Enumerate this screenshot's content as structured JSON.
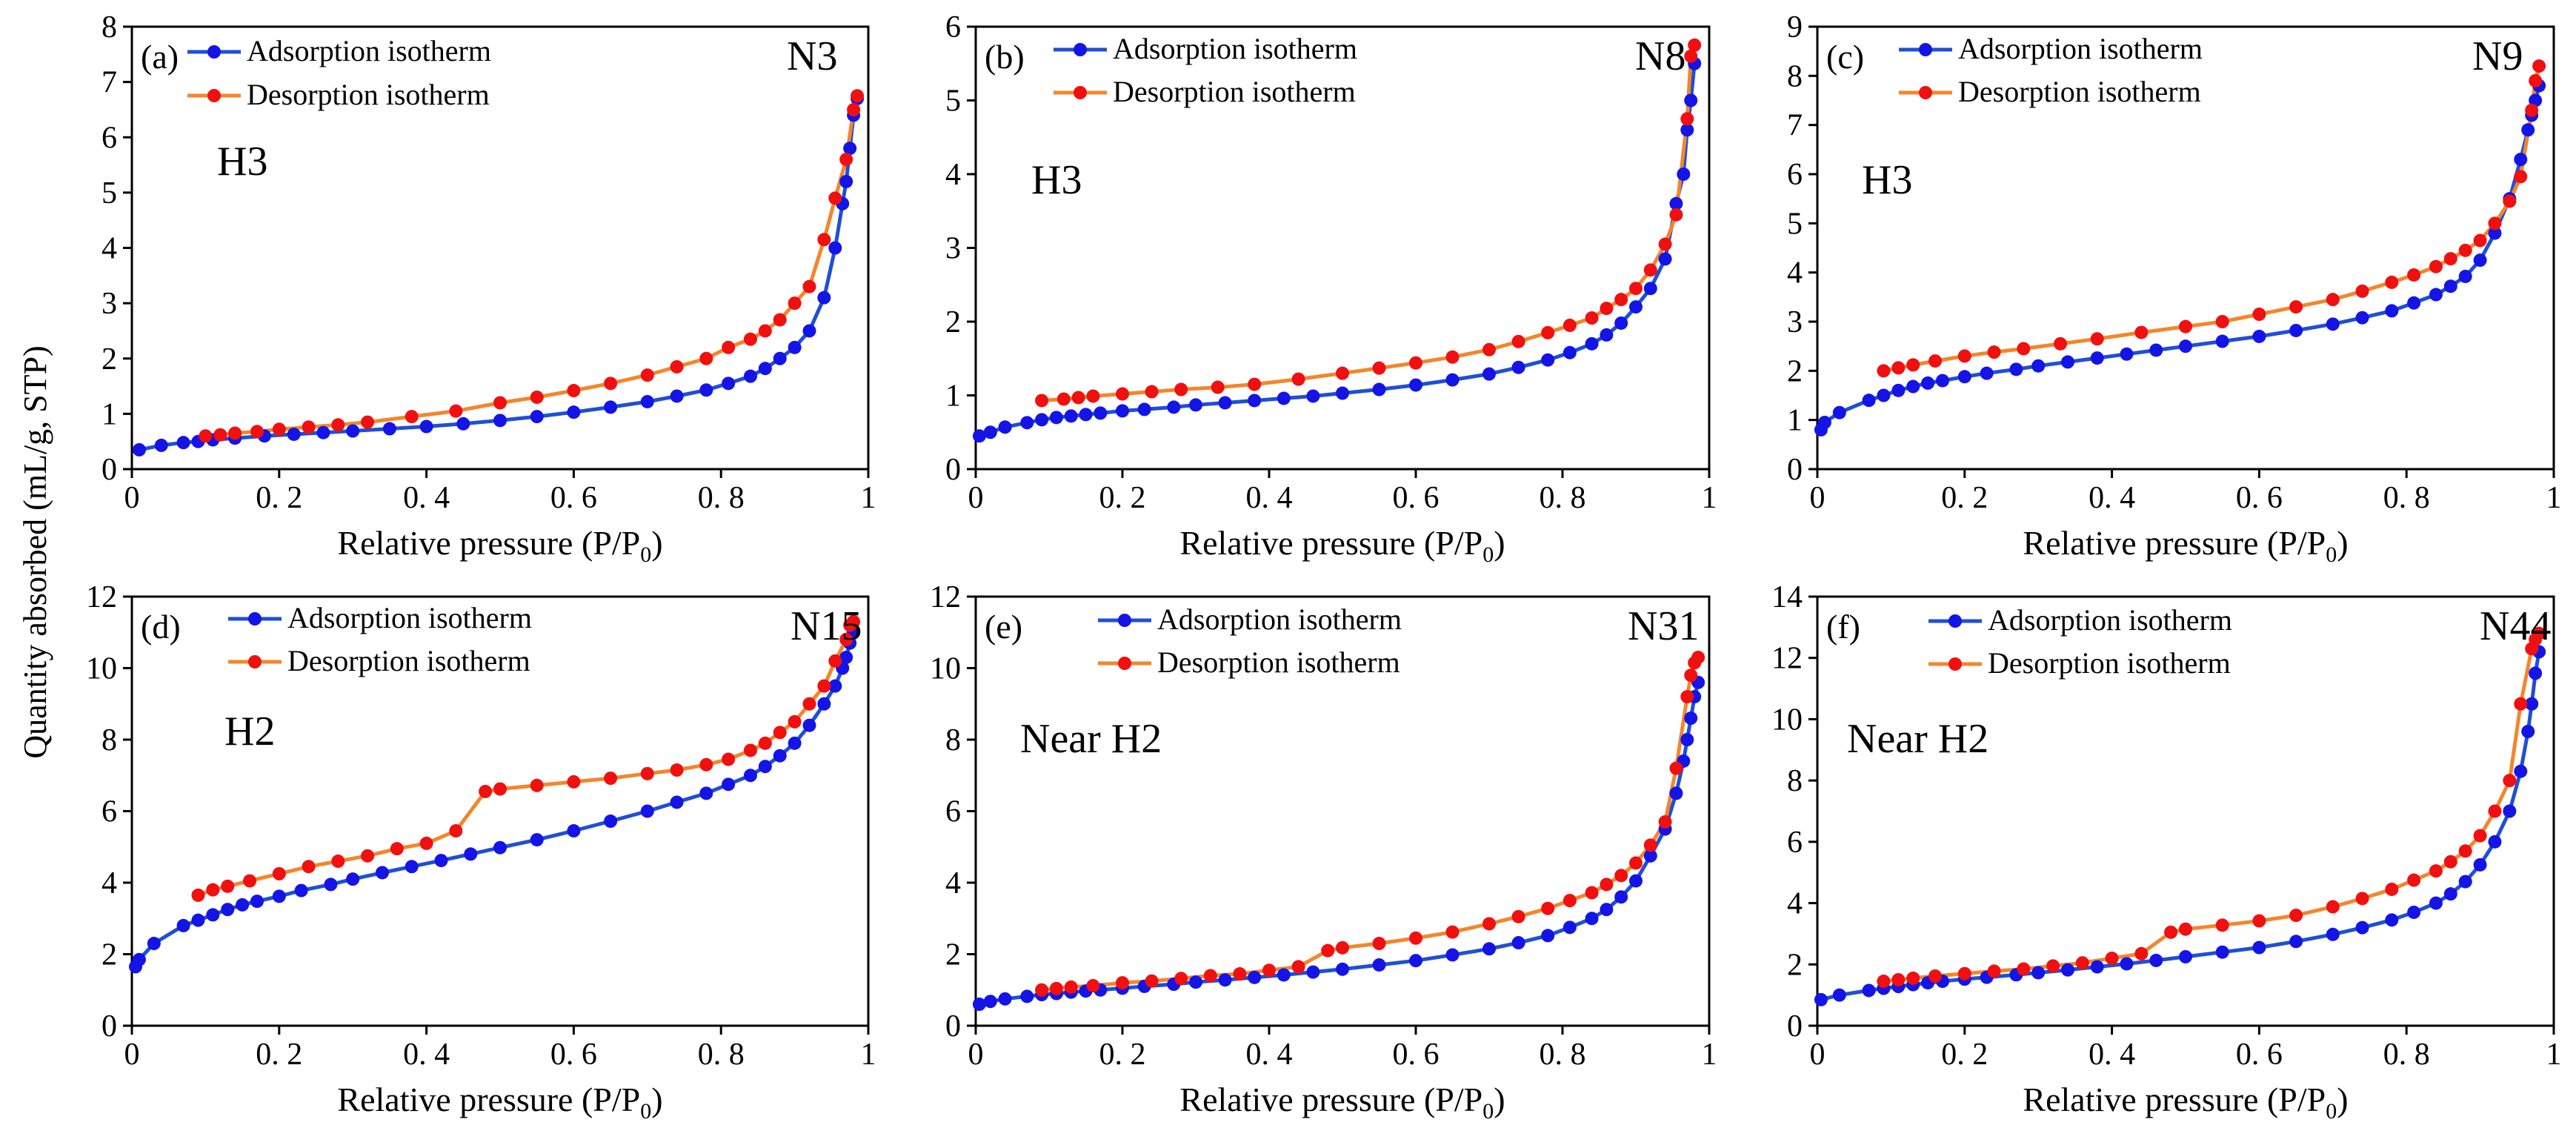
{
  "figure": {
    "ylabel": "Quantity absorbed (mL/g, STP)"
  },
  "colors": {
    "adsorption": "#1f4fd6",
    "desorption": "#f3862b",
    "adsorption_marker": "#1414e6",
    "desorption_marker": "#f01010"
  },
  "chart_data": [
    {
      "type": "line",
      "panel": "(a)",
      "sample": "N3",
      "hysteresis": "H3",
      "xlabel": "Relative pressure",
      "xlabel_expr": "(P/P",
      "xlabel_sub": "0",
      "xlim": [
        0,
        1
      ],
      "ylim": [
        0,
        8
      ],
      "xticks": [
        "0",
        "0. 2",
        "0. 4",
        "0. 6",
        "0. 8",
        "1"
      ],
      "yticks": [
        "0",
        "1",
        "2",
        "3",
        "4",
        "5",
        "6",
        "7",
        "8"
      ],
      "legend": [
        "Adsorption isotherm",
        "Desorption isotherm"
      ],
      "series": [
        {
          "name": "Adsorption isotherm",
          "x": [
            0.01,
            0.04,
            0.07,
            0.09,
            0.11,
            0.14,
            0.18,
            0.22,
            0.26,
            0.3,
            0.35,
            0.4,
            0.45,
            0.5,
            0.55,
            0.6,
            0.65,
            0.7,
            0.74,
            0.78,
            0.81,
            0.84,
            0.86,
            0.88,
            0.9,
            0.92,
            0.94,
            0.955,
            0.965,
            0.97,
            0.975,
            0.98,
            0.985
          ],
          "y": [
            0.35,
            0.43,
            0.48,
            0.5,
            0.53,
            0.56,
            0.6,
            0.63,
            0.66,
            0.69,
            0.73,
            0.77,
            0.82,
            0.88,
            0.95,
            1.03,
            1.12,
            1.22,
            1.32,
            1.43,
            1.55,
            1.68,
            1.82,
            2.0,
            2.2,
            2.5,
            3.1,
            4.0,
            4.8,
            5.2,
            5.8,
            6.4,
            6.7
          ]
        },
        {
          "name": "Desorption isotherm",
          "x": [
            0.985,
            0.98,
            0.97,
            0.955,
            0.94,
            0.92,
            0.9,
            0.88,
            0.86,
            0.84,
            0.81,
            0.78,
            0.74,
            0.7,
            0.65,
            0.6,
            0.55,
            0.5,
            0.44,
            0.38,
            0.32,
            0.28,
            0.24,
            0.2,
            0.17,
            0.14,
            0.12,
            0.1
          ],
          "y": [
            6.75,
            6.5,
            5.6,
            4.9,
            4.15,
            3.3,
            3.0,
            2.7,
            2.5,
            2.35,
            2.2,
            2.0,
            1.85,
            1.7,
            1.55,
            1.42,
            1.3,
            1.2,
            1.05,
            0.95,
            0.85,
            0.8,
            0.76,
            0.72,
            0.68,
            0.65,
            0.62,
            0.6
          ]
        }
      ]
    },
    {
      "type": "line",
      "panel": "(b)",
      "sample": "N8",
      "hysteresis": "H3",
      "xlabel": "Relative pressure",
      "xlabel_expr": "(P/P",
      "xlabel_sub": "0",
      "xlim": [
        0,
        1
      ],
      "ylim": [
        0,
        6
      ],
      "xticks": [
        "0",
        "0. 2",
        "0. 4",
        "0. 6",
        "0. 8",
        "1"
      ],
      "yticks": [
        "0",
        "1",
        "2",
        "3",
        "4",
        "5",
        "6"
      ],
      "legend": [
        "Adsorption isotherm",
        "Desorption isotherm"
      ],
      "series": [
        {
          "name": "Adsorption isotherm",
          "x": [
            0.005,
            0.02,
            0.04,
            0.07,
            0.09,
            0.11,
            0.13,
            0.15,
            0.17,
            0.2,
            0.23,
            0.27,
            0.3,
            0.34,
            0.38,
            0.42,
            0.46,
            0.5,
            0.55,
            0.6,
            0.65,
            0.7,
            0.74,
            0.78,
            0.81,
            0.84,
            0.86,
            0.88,
            0.9,
            0.92,
            0.94,
            0.955,
            0.965,
            0.97,
            0.975,
            0.98
          ],
          "y": [
            0.45,
            0.5,
            0.57,
            0.63,
            0.67,
            0.7,
            0.72,
            0.74,
            0.76,
            0.79,
            0.81,
            0.84,
            0.87,
            0.9,
            0.93,
            0.96,
            0.99,
            1.03,
            1.08,
            1.14,
            1.21,
            1.29,
            1.38,
            1.48,
            1.58,
            1.7,
            1.82,
            1.98,
            2.2,
            2.45,
            2.85,
            3.6,
            4.0,
            4.6,
            5.0,
            5.5
          ]
        },
        {
          "name": "Desorption isotherm",
          "x": [
            0.98,
            0.975,
            0.97,
            0.955,
            0.94,
            0.92,
            0.9,
            0.88,
            0.86,
            0.84,
            0.81,
            0.78,
            0.74,
            0.7,
            0.65,
            0.6,
            0.55,
            0.5,
            0.44,
            0.38,
            0.33,
            0.28,
            0.24,
            0.2,
            0.16,
            0.14,
            0.12,
            0.09
          ],
          "y": [
            5.75,
            5.6,
            4.75,
            3.45,
            3.05,
            2.7,
            2.45,
            2.3,
            2.18,
            2.05,
            1.95,
            1.85,
            1.73,
            1.62,
            1.52,
            1.44,
            1.37,
            1.3,
            1.22,
            1.15,
            1.11,
            1.08,
            1.05,
            1.02,
            0.99,
            0.97,
            0.95,
            0.93
          ]
        }
      ]
    },
    {
      "type": "line",
      "panel": "(c)",
      "sample": "N9",
      "hysteresis": "H3",
      "xlabel": "Relative pressure",
      "xlabel_expr": "(P/P",
      "xlabel_sub": "0",
      "xlim": [
        0,
        1
      ],
      "ylim": [
        0,
        9
      ],
      "xticks": [
        "0",
        "0. 2",
        "0. 4",
        "0. 6",
        "0. 8",
        "1"
      ],
      "yticks": [
        "0",
        "1",
        "2",
        "3",
        "4",
        "5",
        "6",
        "7",
        "8",
        "9"
      ],
      "legend": [
        "Adsorption isotherm",
        "Desorption isotherm"
      ],
      "series": [
        {
          "name": "Adsorption isotherm",
          "x": [
            0.005,
            0.01,
            0.03,
            0.07,
            0.09,
            0.11,
            0.13,
            0.15,
            0.17,
            0.2,
            0.23,
            0.27,
            0.3,
            0.34,
            0.38,
            0.42,
            0.46,
            0.5,
            0.55,
            0.6,
            0.65,
            0.7,
            0.74,
            0.78,
            0.81,
            0.84,
            0.86,
            0.88,
            0.9,
            0.92,
            0.94,
            0.955,
            0.965,
            0.97,
            0.975,
            0.98
          ],
          "y": [
            0.8,
            0.95,
            1.15,
            1.4,
            1.5,
            1.6,
            1.68,
            1.75,
            1.8,
            1.88,
            1.95,
            2.03,
            2.1,
            2.18,
            2.26,
            2.34,
            2.42,
            2.5,
            2.6,
            2.7,
            2.82,
            2.95,
            3.08,
            3.22,
            3.38,
            3.55,
            3.72,
            3.92,
            4.25,
            4.8,
            5.5,
            6.3,
            6.9,
            7.2,
            7.5,
            7.8
          ]
        },
        {
          "name": "Desorption isotherm",
          "x": [
            0.98,
            0.975,
            0.97,
            0.955,
            0.94,
            0.92,
            0.9,
            0.88,
            0.86,
            0.84,
            0.81,
            0.78,
            0.74,
            0.7,
            0.65,
            0.6,
            0.55,
            0.5,
            0.44,
            0.38,
            0.33,
            0.28,
            0.24,
            0.2,
            0.16,
            0.13,
            0.11,
            0.09
          ],
          "y": [
            8.2,
            7.9,
            7.3,
            5.95,
            5.45,
            5.0,
            4.65,
            4.45,
            4.28,
            4.12,
            3.95,
            3.8,
            3.62,
            3.45,
            3.3,
            3.15,
            3.0,
            2.9,
            2.78,
            2.65,
            2.55,
            2.45,
            2.38,
            2.3,
            2.2,
            2.12,
            2.06,
            2.0
          ]
        }
      ]
    },
    {
      "type": "line",
      "panel": "(d)",
      "sample": "N15",
      "hysteresis": "H2",
      "xlabel": "Relative pressure",
      "xlabel_expr": "(P/P",
      "xlabel_sub": "0",
      "xlim": [
        0,
        1
      ],
      "ylim": [
        0,
        12
      ],
      "xticks": [
        "0",
        "0. 2",
        "0. 4",
        "0. 6",
        "0. 8",
        "1"
      ],
      "yticks": [
        "0",
        "2",
        "4",
        "6",
        "8",
        "10",
        "12"
      ],
      "legend": [
        "Adsorption isotherm",
        "Desorption isotherm"
      ],
      "series": [
        {
          "name": "Adsorption isotherm",
          "x": [
            0.005,
            0.01,
            0.03,
            0.07,
            0.09,
            0.11,
            0.13,
            0.15,
            0.17,
            0.2,
            0.23,
            0.27,
            0.3,
            0.34,
            0.38,
            0.42,
            0.46,
            0.5,
            0.55,
            0.6,
            0.65,
            0.7,
            0.74,
            0.78,
            0.81,
            0.84,
            0.86,
            0.88,
            0.9,
            0.92,
            0.94,
            0.955,
            0.965,
            0.97,
            0.975,
            0.98
          ],
          "y": [
            1.65,
            1.85,
            2.3,
            2.8,
            2.95,
            3.1,
            3.25,
            3.38,
            3.48,
            3.62,
            3.78,
            3.95,
            4.1,
            4.28,
            4.45,
            4.62,
            4.8,
            4.98,
            5.2,
            5.45,
            5.72,
            6.0,
            6.25,
            6.5,
            6.75,
            7.0,
            7.25,
            7.55,
            7.9,
            8.4,
            9.0,
            9.5,
            10.0,
            10.3,
            10.7,
            11.0
          ]
        },
        {
          "name": "Desorption isotherm",
          "x": [
            0.98,
            0.975,
            0.97,
            0.955,
            0.94,
            0.92,
            0.9,
            0.88,
            0.86,
            0.84,
            0.81,
            0.78,
            0.74,
            0.7,
            0.65,
            0.6,
            0.55,
            0.5,
            0.48,
            0.44,
            0.4,
            0.36,
            0.32,
            0.28,
            0.24,
            0.2,
            0.16,
            0.13,
            0.11,
            0.09
          ],
          "y": [
            11.3,
            11.2,
            10.8,
            10.2,
            9.5,
            9.0,
            8.5,
            8.2,
            7.9,
            7.7,
            7.45,
            7.3,
            7.15,
            7.05,
            6.92,
            6.82,
            6.72,
            6.62,
            6.55,
            5.45,
            5.1,
            4.95,
            4.75,
            4.6,
            4.45,
            4.25,
            4.05,
            3.9,
            3.8,
            3.65
          ]
        }
      ]
    },
    {
      "type": "line",
      "panel": "(e)",
      "sample": "N31",
      "hysteresis": "Near H2",
      "xlabel": "Relative pressure",
      "xlabel_expr": "(P/P",
      "xlabel_sub": "0",
      "xlim": [
        0,
        1
      ],
      "ylim": [
        0,
        12
      ],
      "xticks": [
        "0",
        "0. 2",
        "0. 4",
        "0. 6",
        "0. 8",
        "1"
      ],
      "yticks": [
        "0",
        "2",
        "4",
        "6",
        "8",
        "10",
        "12"
      ],
      "legend": [
        "Adsorption isotherm",
        "Desorption isotherm"
      ],
      "series": [
        {
          "name": "Adsorption isotherm",
          "x": [
            0.005,
            0.02,
            0.04,
            0.07,
            0.09,
            0.11,
            0.13,
            0.15,
            0.17,
            0.2,
            0.23,
            0.27,
            0.3,
            0.34,
            0.38,
            0.42,
            0.46,
            0.5,
            0.55,
            0.6,
            0.65,
            0.7,
            0.74,
            0.78,
            0.81,
            0.84,
            0.86,
            0.88,
            0.9,
            0.92,
            0.94,
            0.955,
            0.965,
            0.97,
            0.975,
            0.98,
            0.985
          ],
          "y": [
            0.6,
            0.68,
            0.75,
            0.82,
            0.87,
            0.9,
            0.94,
            0.97,
            1.0,
            1.05,
            1.1,
            1.16,
            1.22,
            1.28,
            1.35,
            1.42,
            1.5,
            1.58,
            1.7,
            1.82,
            1.98,
            2.15,
            2.32,
            2.52,
            2.75,
            3.0,
            3.25,
            3.6,
            4.05,
            4.75,
            5.5,
            6.5,
            7.4,
            8.0,
            8.6,
            9.2,
            9.6
          ]
        },
        {
          "name": "Desorption isotherm",
          "x": [
            0.985,
            0.98,
            0.975,
            0.97,
            0.955,
            0.94,
            0.92,
            0.9,
            0.88,
            0.86,
            0.84,
            0.81,
            0.78,
            0.74,
            0.7,
            0.65,
            0.6,
            0.55,
            0.5,
            0.48,
            0.44,
            0.4,
            0.36,
            0.32,
            0.28,
            0.24,
            0.2,
            0.16,
            0.13,
            0.11,
            0.09
          ],
          "y": [
            10.3,
            10.15,
            9.8,
            9.2,
            7.2,
            5.7,
            5.05,
            4.55,
            4.2,
            3.95,
            3.72,
            3.5,
            3.28,
            3.05,
            2.85,
            2.62,
            2.45,
            2.3,
            2.18,
            2.1,
            1.65,
            1.55,
            1.45,
            1.4,
            1.32,
            1.25,
            1.2,
            1.12,
            1.08,
            1.04,
            1.0
          ]
        }
      ]
    },
    {
      "type": "line",
      "panel": "(f)",
      "sample": "N44",
      "hysteresis": "Near H2",
      "xlabel": "Relative pressure",
      "xlabel_expr": "(P/P",
      "xlabel_sub": "0",
      "xlim": [
        0,
        1
      ],
      "ylim": [
        0,
        14
      ],
      "xticks": [
        "0",
        "0. 2",
        "0. 4",
        "0. 6",
        "0. 8",
        "1"
      ],
      "yticks": [
        "0",
        "2",
        "4",
        "6",
        "8",
        "10",
        "12",
        "14"
      ],
      "legend": [
        "Adsorption isotherm",
        "Desorption isotherm"
      ],
      "series": [
        {
          "name": "Adsorption isotherm",
          "x": [
            0.005,
            0.03,
            0.07,
            0.09,
            0.11,
            0.13,
            0.15,
            0.17,
            0.2,
            0.23,
            0.27,
            0.3,
            0.34,
            0.38,
            0.42,
            0.46,
            0.5,
            0.55,
            0.6,
            0.65,
            0.7,
            0.74,
            0.78,
            0.81,
            0.84,
            0.86,
            0.88,
            0.9,
            0.92,
            0.94,
            0.955,
            0.965,
            0.97,
            0.975,
            0.98
          ],
          "y": [
            0.85,
            1.0,
            1.15,
            1.22,
            1.28,
            1.34,
            1.4,
            1.45,
            1.52,
            1.58,
            1.66,
            1.73,
            1.82,
            1.92,
            2.02,
            2.13,
            2.25,
            2.4,
            2.55,
            2.75,
            2.98,
            3.2,
            3.45,
            3.7,
            4.0,
            4.3,
            4.7,
            5.25,
            6.0,
            7.0,
            8.3,
            9.6,
            10.5,
            11.5,
            12.2
          ]
        },
        {
          "name": "Desorption isotherm",
          "x": [
            0.98,
            0.975,
            0.97,
            0.955,
            0.94,
            0.92,
            0.9,
            0.88,
            0.86,
            0.84,
            0.81,
            0.78,
            0.74,
            0.7,
            0.65,
            0.6,
            0.55,
            0.5,
            0.48,
            0.44,
            0.4,
            0.36,
            0.32,
            0.28,
            0.24,
            0.2,
            0.16,
            0.13,
            0.11,
            0.09
          ],
          "y": [
            12.8,
            12.6,
            12.3,
            10.5,
            8.0,
            7.0,
            6.2,
            5.7,
            5.35,
            5.05,
            4.75,
            4.45,
            4.15,
            3.88,
            3.6,
            3.42,
            3.28,
            3.15,
            3.05,
            2.35,
            2.2,
            2.05,
            1.95,
            1.85,
            1.78,
            1.7,
            1.62,
            1.55,
            1.5,
            1.45
          ]
        }
      ]
    }
  ]
}
